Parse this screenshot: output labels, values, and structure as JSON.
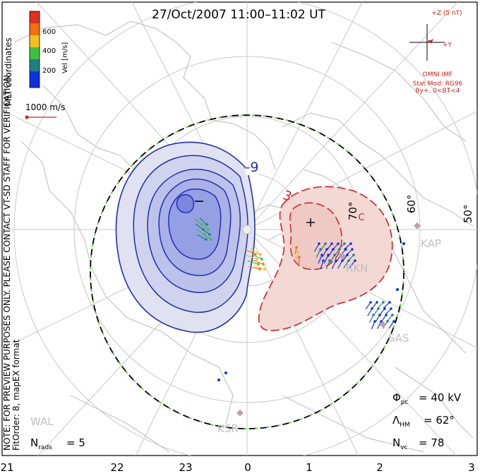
{
  "title": "27/Oct/2007 11:00–11:02 UT",
  "colorbar": {
    "label": "Vel [m/s]",
    "ticks": [
      "600",
      "400",
      "200"
    ],
    "colors": [
      "#e03020",
      "#f07010",
      "#f0c020",
      "#40c040",
      "#208080",
      "#1030e0"
    ]
  },
  "coord_label": "MLT coordinates",
  "ref_vector_label": "1000 m/s",
  "note_line1": "NOTE: FOR PREVIEW PURPOSES ONLY. PLEASE CONTACT VT-SD STAFF FOR VERIFICATION.",
  "note_line2": "FitOrder: 8, mapEX format",
  "imf": {
    "z_label": "+Z (5 nT)",
    "y_label": "+Y",
    "source": "OMNI IMF",
    "model": "Stat Mod: RG96",
    "condition": "By+, 0<BT<4"
  },
  "contour_labels": [
    "-9",
    "3"
  ],
  "lat_labels": [
    "70°",
    "60°",
    "50°"
  ],
  "radars": [
    "RKN",
    "KAP",
    "SAS",
    "KSR",
    "WAL"
  ],
  "stats": {
    "phi_pc": "40 kV",
    "lambda_hm": "62°",
    "n_vc": "78",
    "n_rads": "5"
  },
  "mlt_ticks": [
    "21",
    "22",
    "23",
    "0",
    "1",
    "2",
    "3"
  ],
  "colors": {
    "negative_cell": "#2030b0",
    "positive_cell": "#d02020",
    "boundary_green": "#60d040",
    "grid": "#c8c8c8",
    "coast": "#c4c4c4",
    "radar": "#c0a0b0"
  }
}
